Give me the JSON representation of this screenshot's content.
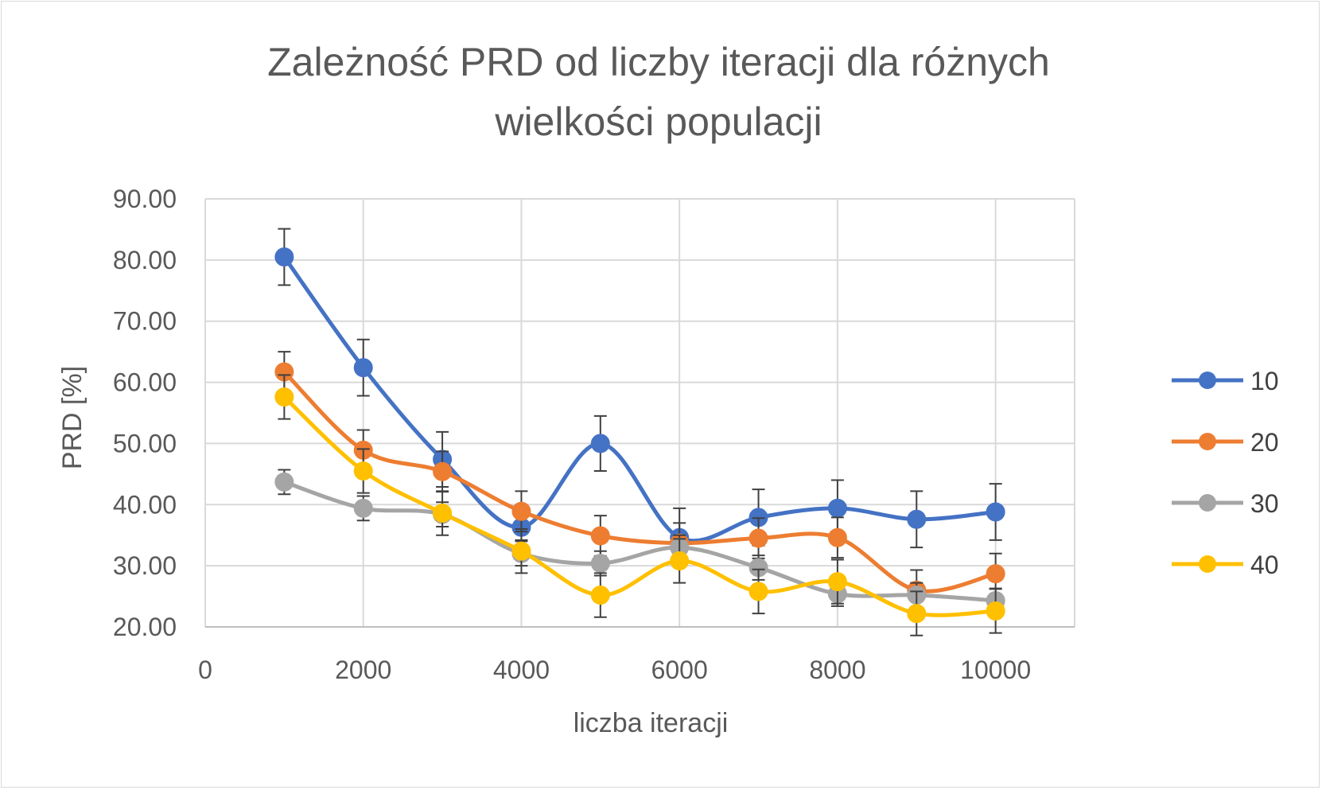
{
  "chart_data": {
    "type": "line",
    "title": "Zależność PRD od liczby iteracji dla różnych wielkości populacji",
    "title_lines": [
      "Zależność PRD od liczby iteracji dla różnych",
      "wielkości populacji"
    ],
    "xlabel": "liczba iteracji",
    "ylabel": "PRD [%]",
    "xlim": [
      0,
      11000
    ],
    "ylim": [
      20,
      90
    ],
    "x_ticks": [
      "0",
      "2000",
      "4000",
      "6000",
      "8000",
      "10000"
    ],
    "y_ticks": [
      "20.00",
      "30.00",
      "40.00",
      "50.00",
      "60.00",
      "70.00",
      "80.00",
      "90.00"
    ],
    "grid": true,
    "smooth": true,
    "legend_position": "right",
    "x": [
      1000,
      2000,
      3000,
      4000,
      5000,
      6000,
      7000,
      8000,
      9000,
      10000
    ],
    "series": [
      {
        "name": "10",
        "color": "#4472c4",
        "values": [
          80.5,
          62.4,
          47.4,
          36.3,
          50.0,
          34.6,
          37.9,
          39.4,
          37.6,
          38.8
        ],
        "errors": [
          4.6,
          4.6,
          4.5,
          2.1,
          4.5,
          4.8,
          4.6,
          4.6,
          4.6,
          4.6
        ]
      },
      {
        "name": "20",
        "color": "#ed7d31",
        "values": [
          61.7,
          48.9,
          45.4,
          38.9,
          34.9,
          33.7,
          34.5,
          34.6,
          26.0,
          28.7
        ],
        "errors": [
          3.3,
          3.3,
          3.3,
          3.3,
          3.3,
          3.3,
          3.3,
          3.3,
          3.3,
          3.3
        ]
      },
      {
        "name": "30",
        "color": "#a5a5a5",
        "values": [
          43.7,
          39.4,
          38.4,
          32.0,
          30.4,
          33.0,
          29.7,
          25.4,
          25.2,
          24.3
        ],
        "errors": [
          2.0,
          2.0,
          2.0,
          2.0,
          2.0,
          2.0,
          2.0,
          2.0,
          2.0,
          2.0
        ]
      },
      {
        "name": "40",
        "color": "#ffc000",
        "values": [
          57.6,
          45.5,
          38.6,
          32.4,
          25.2,
          30.8,
          25.8,
          27.4,
          22.2,
          22.6
        ],
        "errors": [
          3.6,
          3.6,
          3.6,
          3.6,
          3.6,
          3.6,
          3.6,
          3.6,
          3.6,
          3.6
        ]
      }
    ]
  }
}
